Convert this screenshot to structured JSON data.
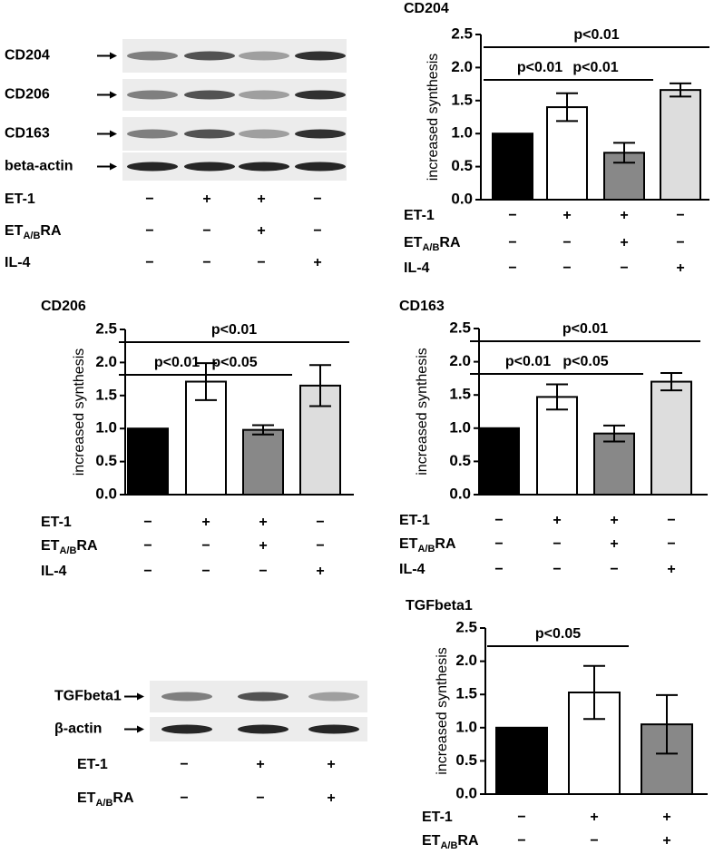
{
  "chart_data": [
    {
      "type": "bar",
      "title": "CD204",
      "ylabel": "increased synthesis",
      "values": [
        1.0,
        1.4,
        0.71,
        1.66
      ],
      "errors": [
        0,
        0.21,
        0.15,
        0.1
      ],
      "colors": [
        "#000000",
        "#ffffff",
        "#888888",
        "#dddddd"
      ],
      "ylim": [
        0,
        2.5
      ],
      "yticks": [
        {
          "value": 0,
          "label": "0.0"
        },
        0.5,
        {
          "value": 1,
          "label": "1.0"
        },
        1.5,
        {
          "value": 2,
          "label": "2.0"
        },
        2.5
      ],
      "brackets": [
        {
          "text": "p<0.01",
          "from": 0,
          "to": 3
        },
        {
          "text": "p<0.01",
          "from": 0,
          "to": 1
        },
        {
          "text": "p<0.01",
          "from": 1,
          "to": 2
        }
      ],
      "treatments": [
        {
          "name": "ET-1",
          "signs": [
            "−",
            "+",
            "+",
            "−"
          ]
        },
        {
          "name": "ET",
          "sub": "A/B",
          "rest": "RA",
          "signs": [
            "−",
            "−",
            "+",
            "−"
          ]
        },
        {
          "name": "IL-4",
          "signs": [
            "−",
            "−",
            "−",
            "+"
          ]
        }
      ]
    },
    {
      "type": "bar",
      "title": "CD206",
      "ylabel": "increased synthesis",
      "values": [
        1.0,
        1.71,
        0.98,
        1.65
      ],
      "errors": [
        0,
        0.28,
        0.07,
        0.31
      ],
      "colors": [
        "#000000",
        "#ffffff",
        "#888888",
        "#dddddd"
      ],
      "ylim": [
        0,
        2.5
      ],
      "yticks": [
        {
          "value": 0,
          "label": "0.0"
        },
        0.5,
        {
          "value": 1,
          "label": "1.0"
        },
        1.5,
        {
          "value": 2,
          "label": "2.0"
        },
        2.5
      ],
      "brackets": [
        {
          "text": "p<0.01",
          "from": 0,
          "to": 3
        },
        {
          "text": "p<0.01",
          "from": 0,
          "to": 1
        },
        {
          "text": "p<0.05",
          "from": 1,
          "to": 2
        }
      ],
      "treatments": [
        {
          "name": "ET-1",
          "signs": [
            "−",
            "+",
            "+",
            "−"
          ]
        },
        {
          "name": "ET",
          "sub": "A/B",
          "rest": "RA",
          "signs": [
            "−",
            "−",
            "+",
            "−"
          ]
        },
        {
          "name": "IL-4",
          "signs": [
            "−",
            "−",
            "−",
            "+"
          ]
        }
      ]
    },
    {
      "type": "bar",
      "title": "CD163",
      "ylabel": "increased synthesis",
      "values": [
        1.0,
        1.47,
        0.92,
        1.7
      ],
      "errors": [
        0,
        0.19,
        0.12,
        0.13
      ],
      "colors": [
        "#000000",
        "#ffffff",
        "#888888",
        "#dddddd"
      ],
      "ylim": [
        0,
        2.5
      ],
      "yticks": [
        {
          "value": 0,
          "label": "0.0"
        },
        0.5,
        {
          "value": 1,
          "label": "1.0"
        },
        1.5,
        {
          "value": 2,
          "label": "2.0"
        },
        2.5
      ],
      "brackets": [
        {
          "text": "p<0.01",
          "from": 0,
          "to": 3
        },
        {
          "text": "p<0.01",
          "from": 0,
          "to": 1
        },
        {
          "text": "p<0.05",
          "from": 1,
          "to": 2
        }
      ],
      "treatments": [
        {
          "name": "ET-1",
          "signs": [
            "−",
            "+",
            "+",
            "−"
          ]
        },
        {
          "name": "ET",
          "sub": "A/B",
          "rest": "RA",
          "signs": [
            "−",
            "−",
            "+",
            "−"
          ]
        },
        {
          "name": "IL-4",
          "signs": [
            "−",
            "−",
            "−",
            "+"
          ]
        }
      ]
    },
    {
      "type": "bar",
      "title": "TGFbeta1",
      "ylabel": "increased synthesis",
      "values": [
        1.0,
        1.53,
        1.05
      ],
      "errors": [
        0,
        0.4,
        0.44
      ],
      "colors": [
        "#000000",
        "#ffffff",
        "#888888"
      ],
      "ylim": [
        0,
        2.5
      ],
      "yticks": [
        {
          "value": 0,
          "label": "0.0"
        },
        0.5,
        {
          "value": 1,
          "label": "1.0"
        },
        1.5,
        {
          "value": 2,
          "label": "2.0"
        },
        2.5
      ],
      "brackets": [
        {
          "text": "p<0.05",
          "from": 0,
          "to": 1
        }
      ],
      "treatments": [
        {
          "name": "ET-1",
          "signs": [
            "−",
            "+",
            "+"
          ]
        },
        {
          "name": "ET",
          "sub": "A/B",
          "rest": "RA",
          "signs": [
            "−",
            "−",
            "+"
          ]
        }
      ]
    }
  ],
  "blots": [
    {
      "rows": [
        "CD204",
        "CD206",
        "CD163",
        "beta-actin"
      ],
      "treatments": [
        {
          "name": "ET-1",
          "signs": [
            "−",
            "+",
            "+",
            "−"
          ]
        },
        {
          "name": "ET",
          "sub": "A/B",
          "rest": "RA",
          "signs": [
            "−",
            "−",
            "+",
            "−"
          ]
        },
        {
          "name": "IL-4",
          "signs": [
            "−",
            "−",
            "−",
            "+"
          ]
        }
      ]
    },
    {
      "rows": [
        "TGFbeta1",
        "β-actin"
      ],
      "treatments": [
        {
          "name": "ET-1",
          "signs": [
            "−",
            "+",
            "+"
          ]
        },
        {
          "name": "ET",
          "sub": "A/B",
          "rest": "RA",
          "signs": [
            "−",
            "−",
            "+"
          ]
        }
      ]
    }
  ]
}
